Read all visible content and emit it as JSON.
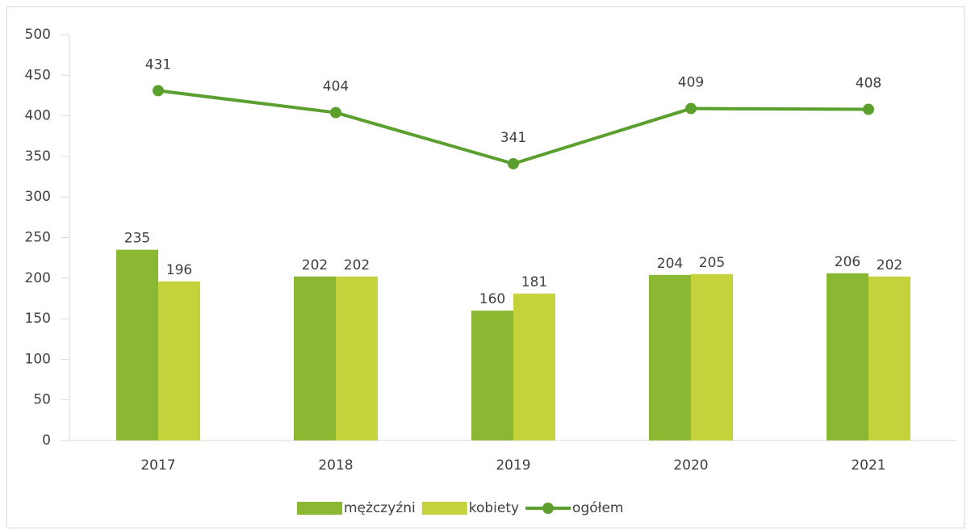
{
  "chart_data": {
    "type": "bar",
    "categories": [
      "2017",
      "2018",
      "2019",
      "2020",
      "2021"
    ],
    "series": [
      {
        "name": "mężczyźni",
        "type": "bar",
        "color": "#8ab833",
        "values": [
          235,
          202,
          160,
          204,
          206
        ]
      },
      {
        "name": "kobiety",
        "type": "bar",
        "color": "#c4d23c",
        "values": [
          196,
          202,
          181,
          205,
          202
        ]
      },
      {
        "name": "ogółem",
        "type": "line",
        "color": "#5b9f2e",
        "values": [
          431,
          404,
          341,
          409,
          408
        ]
      }
    ],
    "ylim": [
      0,
      500
    ],
    "yticks": [
      0,
      50,
      100,
      150,
      200,
      250,
      300,
      350,
      400,
      450,
      500
    ],
    "grid": false,
    "legend": "bottom"
  }
}
